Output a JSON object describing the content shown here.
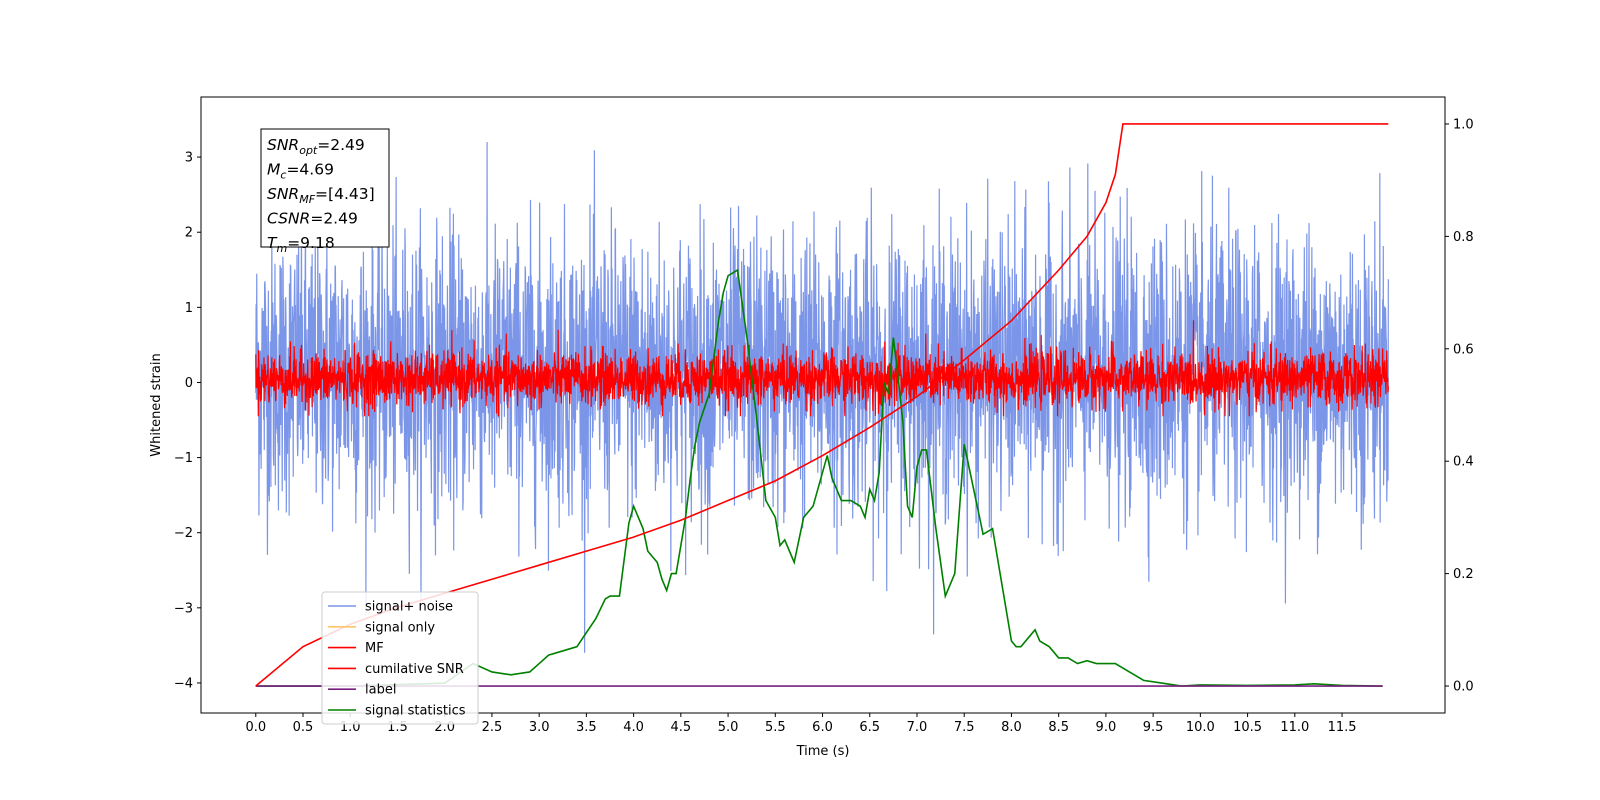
{
  "chart_data": {
    "type": "line",
    "title": "",
    "xlabel": "Time (s)",
    "ylabel": "Whitened strain",
    "y2label": "",
    "xlim": [
      -0.58,
      12.59
    ],
    "ylim": [
      -4.4,
      3.8
    ],
    "y2lim": [
      -0.048,
      1.048
    ],
    "x_ticks": [
      0.0,
      0.5,
      1.0,
      1.5,
      2.0,
      2.5,
      3.0,
      3.5,
      4.0,
      4.5,
      5.0,
      5.5,
      6.0,
      6.5,
      7.0,
      7.5,
      8.0,
      8.5,
      9.0,
      9.5,
      10.0,
      10.5,
      11.0,
      11.5
    ],
    "x_tick_labels": [
      "0.0",
      "0.5",
      "1.0",
      "1.5",
      "2.0",
      "2.5",
      "3.0",
      "3.5",
      "4.0",
      "4.5",
      "5.0",
      "5.5",
      "6.0",
      "6.5",
      "7.0",
      "7.5",
      "8.0",
      "8.5",
      "9.0",
      "9.5",
      "10.0",
      "10.5",
      "11.0",
      "11.5"
    ],
    "y_ticks": [
      -4,
      -3,
      -2,
      -1,
      0,
      1,
      2,
      3
    ],
    "y_tick_labels": [
      "−4",
      "−3",
      "−2",
      "−1",
      "0",
      "1",
      "2",
      "3"
    ],
    "y2_ticks": [
      0.0,
      0.2,
      0.4,
      0.6,
      0.8,
      1.0
    ],
    "y2_tick_labels": [
      "0.0",
      "0.2",
      "0.4",
      "0.6",
      "0.8",
      "1.0"
    ],
    "legend_position": "lower-left",
    "annotation": {
      "lines": [
        {
          "base": "SNR",
          "sub": "opt",
          "rest": "=2.49"
        },
        {
          "base": "M",
          "sub": "c",
          "rest": "=4.69"
        },
        {
          "base": "SNR",
          "sub": "MF",
          "rest": "=[4.43]"
        },
        {
          "base": "CSNR",
          "sub": "",
          "rest": "=2.49"
        },
        {
          "base": "T",
          "sub": "m",
          "rest": "=9.18"
        }
      ]
    },
    "series": [
      {
        "name": "signal+ noise",
        "color": "#7b95e8",
        "axis": "left",
        "kind": "noise",
        "x_range": [
          0.0,
          11.99
        ],
        "envelope_typical": [
          -1.9,
          2.2
        ],
        "peak_extremes": [
          -3.7,
          3.4
        ]
      },
      {
        "name": "signal only",
        "color": "#ffc56b",
        "axis": "left",
        "kind": "hidden"
      },
      {
        "name": "MF",
        "color": "#ff0000",
        "axis": "left",
        "kind": "noise",
        "x_range": [
          0.0,
          11.99
        ],
        "envelope_typical": [
          -0.35,
          0.45
        ],
        "peak_extremes": [
          -0.45,
          0.95
        ]
      },
      {
        "name": "cumilative SNR",
        "color": "#ff0000",
        "axis": "right",
        "kind": "line",
        "x": [
          0.0,
          0.5,
          1.0,
          1.5,
          2.0,
          2.5,
          3.0,
          3.5,
          4.0,
          4.5,
          5.0,
          5.5,
          6.0,
          6.5,
          7.0,
          7.5,
          8.0,
          8.5,
          8.8,
          9.0,
          9.1,
          9.18,
          11.99
        ],
        "y": [
          0.0,
          0.07,
          0.11,
          0.14,
          0.165,
          0.19,
          0.215,
          0.24,
          0.265,
          0.295,
          0.33,
          0.365,
          0.41,
          0.46,
          0.515,
          0.58,
          0.65,
          0.74,
          0.8,
          0.86,
          0.91,
          1.0,
          1.0
        ]
      },
      {
        "name": "label",
        "color": "#7a1f82",
        "axis": "right",
        "kind": "line",
        "x": [
          0.0,
          11.93
        ],
        "y": [
          0.0,
          0.0
        ]
      },
      {
        "name": "signal statistics",
        "color": "#008000",
        "axis": "right",
        "kind": "line",
        "x": [
          0.0,
          1.0,
          2.0,
          2.3,
          2.5,
          2.7,
          2.9,
          3.0,
          3.1,
          3.2,
          3.4,
          3.6,
          3.7,
          3.75,
          3.85,
          3.95,
          4.0,
          4.1,
          4.15,
          4.2,
          4.25,
          4.3,
          4.35,
          4.4,
          4.45,
          4.5,
          4.55,
          4.6,
          4.65,
          4.7,
          4.8,
          4.9,
          4.95,
          5.0,
          5.05,
          5.1,
          5.2,
          5.3,
          5.4,
          5.5,
          5.55,
          5.6,
          5.7,
          5.8,
          5.9,
          6.0,
          6.05,
          6.1,
          6.2,
          6.3,
          6.4,
          6.45,
          6.5,
          6.55,
          6.6,
          6.65,
          6.7,
          6.75,
          6.8,
          6.85,
          6.9,
          6.95,
          7.0,
          7.05,
          7.1,
          7.2,
          7.3,
          7.4,
          7.5,
          7.6,
          7.7,
          7.8,
          7.9,
          8.0,
          8.05,
          8.1,
          8.2,
          8.25,
          8.3,
          8.4,
          8.5,
          8.6,
          8.7,
          8.8,
          8.9,
          9.0,
          9.1,
          9.2,
          9.4,
          9.6,
          9.8,
          10.0,
          10.5,
          11.0,
          11.2,
          11.5,
          11.93
        ],
        "y": [
          0.0,
          0.0,
          0.005,
          0.04,
          0.025,
          0.02,
          0.025,
          0.04,
          0.055,
          0.06,
          0.07,
          0.12,
          0.155,
          0.16,
          0.16,
          0.29,
          0.32,
          0.28,
          0.24,
          0.23,
          0.22,
          0.19,
          0.17,
          0.2,
          0.2,
          0.25,
          0.3,
          0.37,
          0.43,
          0.47,
          0.52,
          0.65,
          0.7,
          0.73,
          0.735,
          0.74,
          0.62,
          0.48,
          0.33,
          0.3,
          0.25,
          0.26,
          0.22,
          0.3,
          0.32,
          0.38,
          0.41,
          0.37,
          0.33,
          0.33,
          0.32,
          0.3,
          0.35,
          0.33,
          0.38,
          0.54,
          0.52,
          0.62,
          0.55,
          0.47,
          0.32,
          0.3,
          0.39,
          0.42,
          0.42,
          0.28,
          0.16,
          0.2,
          0.43,
          0.35,
          0.27,
          0.28,
          0.18,
          0.08,
          0.07,
          0.07,
          0.09,
          0.1,
          0.08,
          0.07,
          0.05,
          0.05,
          0.04,
          0.045,
          0.04,
          0.04,
          0.04,
          0.03,
          0.01,
          0.005,
          0.0,
          0.002,
          0.001,
          0.002,
          0.004,
          0.001,
          0.0
        ]
      }
    ]
  }
}
